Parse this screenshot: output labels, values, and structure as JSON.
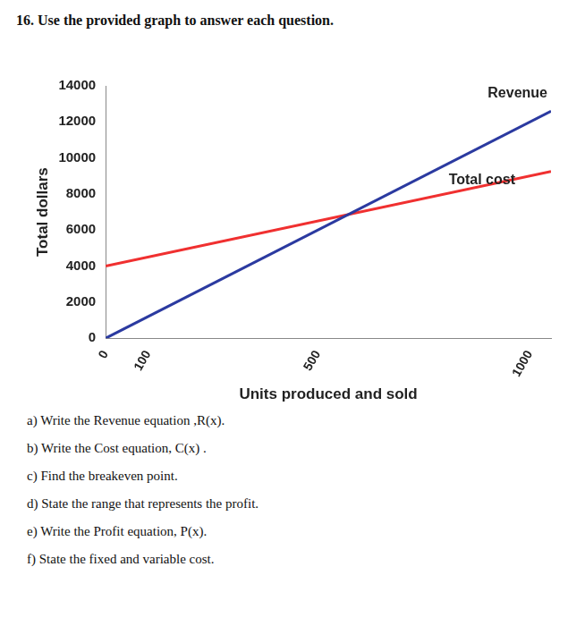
{
  "heading": "16. Use the provided graph to answer each question.",
  "chart_data": {
    "type": "line",
    "x_label": "Units produced and sold",
    "y_label": "Total dollars",
    "x": [
      0,
      1050
    ],
    "series": [
      {
        "name": "Revenue",
        "color": "#2b3aa0",
        "values": [
          0,
          12600
        ]
      },
      {
        "name": "Total cost",
        "color": "#f03030",
        "values": [
          4000,
          9250
        ]
      }
    ],
    "xlim": [
      0,
      1050
    ],
    "xticks": [
      0,
      100,
      500,
      1000
    ],
    "ylim": [
      0,
      14000
    ],
    "yticks": [
      0,
      2000,
      4000,
      6000,
      8000,
      10000,
      12000,
      14000
    ],
    "grid": false
  },
  "questions": [
    "a) Write the Revenue equation ,R(x).",
    "b) Write the Cost equation, C(x) .",
    "c) Find the breakeven point.",
    "d) State the range that represents the profit.",
    "e) Write the Profit equation, P(x).",
    "f) State the fixed and variable cost."
  ]
}
